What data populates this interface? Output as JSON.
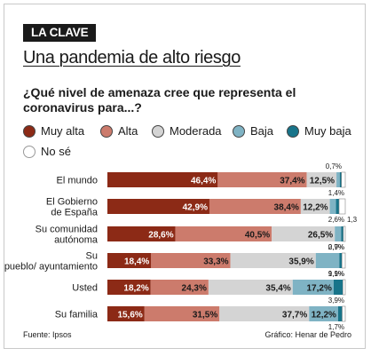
{
  "header": {
    "kicker": "LA CLAVE",
    "title": "Una pandemia de alto riesgo",
    "question": "¿Qué nivel de amenaza cree que representa el coronavirus para...?"
  },
  "legend": [
    {
      "label": "Muy alta",
      "color": "#8c2a16"
    },
    {
      "label": "Alta",
      "color": "#cc7b6c"
    },
    {
      "label": "Moderada",
      "color": "#d4d4d4"
    },
    {
      "label": "Baja",
      "color": "#7fb3c4"
    },
    {
      "label": "Muy baja",
      "color": "#18748a"
    },
    {
      "label": "No sé",
      "color": "#ffffff"
    }
  ],
  "chart_data": {
    "type": "bar",
    "orientation": "horizontal",
    "stacked": true,
    "categories": [
      "El mundo",
      "El Gobierno de España",
      "Su comunidad autónoma",
      "Su pueblo/ ayuntamiento",
      "Usted",
      "Su familia"
    ],
    "series": [
      {
        "name": "Muy alta",
        "values": [
          46.4,
          42.9,
          28.6,
          18.4,
          18.2,
          15.6
        ]
      },
      {
        "name": "Alta",
        "values": [
          37.4,
          38.4,
          40.5,
          33.3,
          24.3,
          31.5
        ]
      },
      {
        "name": "Moderada",
        "values": [
          12.5,
          12.2,
          26.5,
          35.9,
          35.4,
          37.7
        ]
      },
      {
        "name": "Baja",
        "values": [
          1.4,
          2.6,
          2.7,
          9.9,
          17.2,
          12.2
        ]
      },
      {
        "name": "Muy baja",
        "values": [
          0.7,
          1.3,
          0.9,
          1.1,
          3.9,
          1.7
        ]
      },
      {
        "name": "No sé",
        "values": [
          1.6,
          2.6,
          0.8,
          1.4,
          1.0,
          1.3
        ]
      }
    ],
    "data_labels": [
      [
        "46,4%",
        "37,4%",
        "12,5%",
        "1,4%",
        "0,7%",
        ""
      ],
      [
        "42,9%",
        "38,4%",
        "12,2%",
        "2,6%",
        "1,3",
        ""
      ],
      [
        "28,6%",
        "40,5%",
        "26,5%",
        "2,7%",
        "0,9%",
        ""
      ],
      [
        "18,4%",
        "33,3%",
        "35,9%",
        "9,9%",
        "1,1%",
        ""
      ],
      [
        "18,2%",
        "24,3%",
        "35,4%",
        "17,2%",
        "3,9%",
        ""
      ],
      [
        "15,6%",
        "31,5%",
        "37,7%",
        "12,2%",
        "1,7%",
        ""
      ]
    ]
  },
  "footer": {
    "source": "Fuente: Ipsos",
    "credit": "Gráfico: Henar de Pedro"
  }
}
